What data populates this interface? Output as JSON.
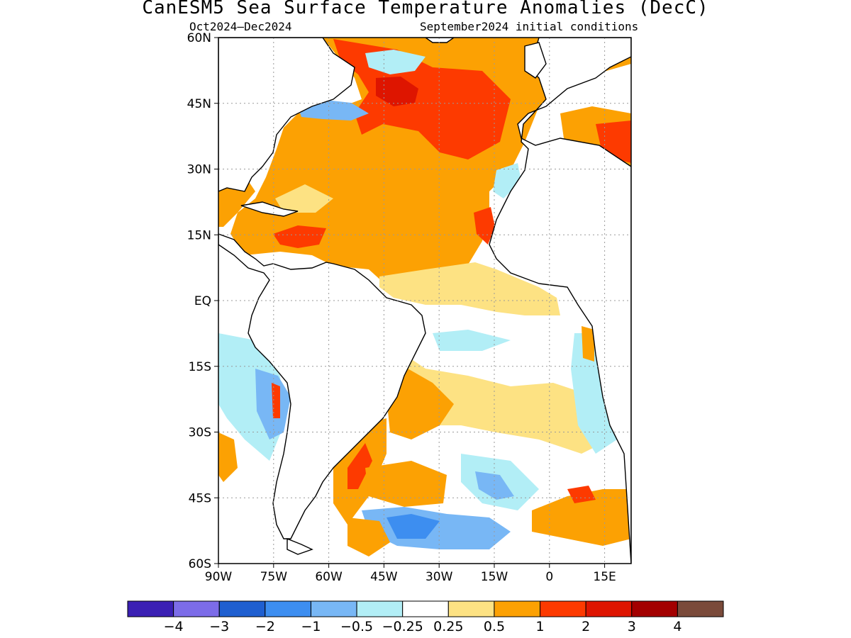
{
  "title": "CanESM5 Sea Surface Temperature Anomalies (DecC)",
  "period": "Oct2024–Dec2024",
  "init": "September2024 initial conditions",
  "map": {
    "lat_range": [
      -60,
      60
    ],
    "lon_range": [
      -90,
      20
    ],
    "lat_ticks": [
      "60N",
      "45N",
      "30N",
      "15N",
      "EQ",
      "15S",
      "30S",
      "45S",
      "60S"
    ],
    "lon_ticks": [
      "90W",
      "75W",
      "60W",
      "45W",
      "30W",
      "15W",
      "0",
      "15E"
    ],
    "grid": "dotted",
    "land_color": "#ffffff",
    "coast_color": "#000000"
  },
  "colorbar": {
    "colors": [
      "#3b20b4",
      "#7c6ce8",
      "#1f5fd0",
      "#3d8ef0",
      "#78b7f5",
      "#b2eef6",
      "#ffffff",
      "#fde283",
      "#fca103",
      "#fd3a00",
      "#de1500",
      "#a30000",
      "#7a4a3a"
    ],
    "labels": [
      "−4",
      "−3",
      "−2",
      "−1",
      "−0.5",
      "−0.25",
      "0.25",
      "0.5",
      "1",
      "2",
      "3",
      "4"
    ]
  }
}
